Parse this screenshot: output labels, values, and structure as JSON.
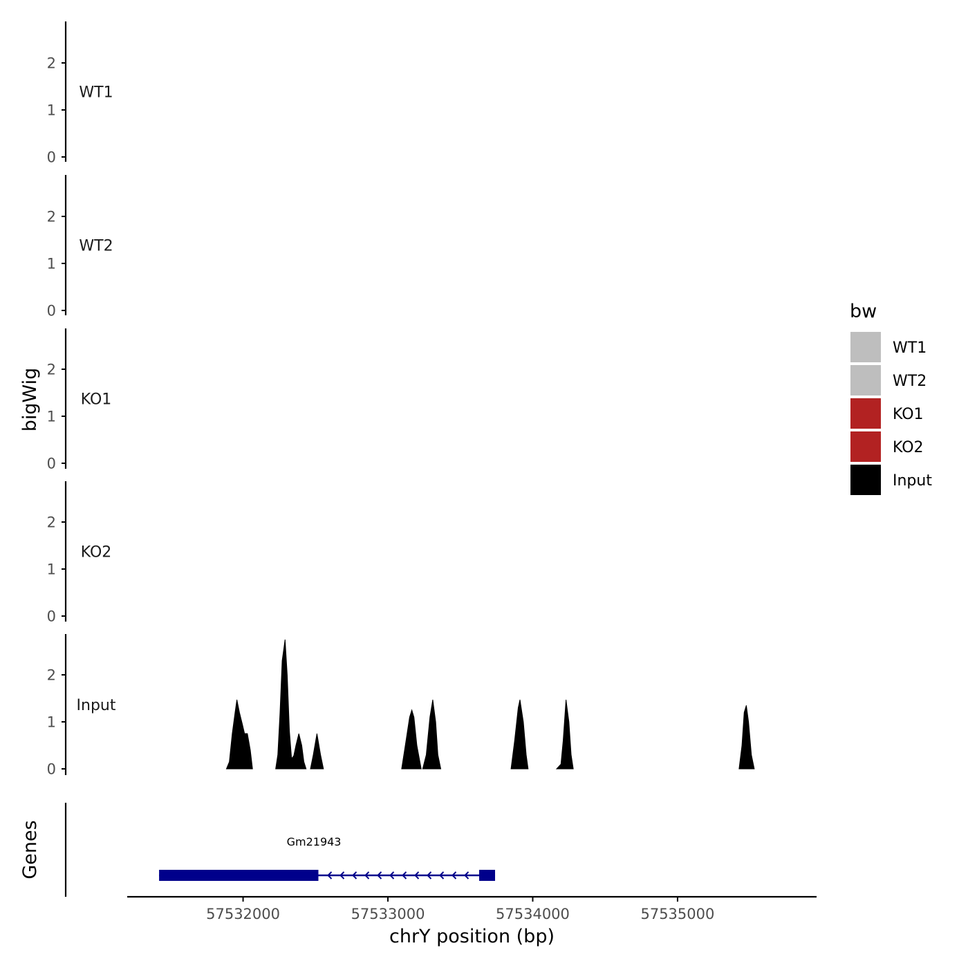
{
  "colors": {
    "WT": "#bebebe",
    "KO": "#b22222",
    "Input": "#000000",
    "gene": "#00008b",
    "axis": "#000000"
  },
  "chart_data": {
    "type": "area",
    "chromosome": "chrY",
    "xlabel": "chrY position (bp)",
    "ylabel": "bigWig",
    "genes_label": "Genes",
    "xlim": [
      57531200,
      57535960
    ],
    "x_ticks": [
      {
        "value": 57532000,
        "label": "57532000"
      },
      {
        "value": 57533000,
        "label": "57533000"
      },
      {
        "value": 57534000,
        "label": "57534000"
      },
      {
        "value": 57535000,
        "label": "57535000"
      }
    ],
    "ylim": [
      0,
      2.9
    ],
    "y_ticks": [
      {
        "value": 0,
        "label": "0"
      },
      {
        "value": 1,
        "label": "1"
      },
      {
        "value": 2,
        "label": "2"
      }
    ],
    "legend": {
      "title": "bw",
      "position": "right",
      "items": [
        {
          "label": "WT1",
          "color": "#bebebe"
        },
        {
          "label": "WT2",
          "color": "#bebebe"
        },
        {
          "label": "KO1",
          "color": "#b22222"
        },
        {
          "label": "KO2",
          "color": "#b22222"
        },
        {
          "label": "Input",
          "color": "#000000"
        }
      ]
    },
    "series": [
      {
        "name": "WT1",
        "label": "WT1",
        "color": "#bebebe",
        "points": []
      },
      {
        "name": "WT2",
        "label": "WT2",
        "color": "#bebebe",
        "points": []
      },
      {
        "name": "KO1",
        "label": "KO1",
        "color": "#b22222",
        "points": []
      },
      {
        "name": "KO2",
        "label": "KO2",
        "color": "#b22222",
        "points": []
      },
      {
        "name": "Input",
        "label": "Input",
        "color": "#000000",
        "peaks": [
          [
            [
              57531885,
              0
            ],
            [
              57531905,
              0.15
            ],
            [
              57531925,
              0.75
            ],
            [
              57531945,
              1.2
            ],
            [
              57531957,
              1.47
            ],
            [
              57531975,
              1.2
            ],
            [
              57531995,
              0.95
            ],
            [
              57532010,
              0.75
            ],
            [
              57532030,
              0.75
            ],
            [
              57532050,
              0.4
            ],
            [
              57532065,
              0
            ]
          ],
          [
            [
              57532225,
              0
            ],
            [
              57532240,
              0.3
            ],
            [
              57532255,
              1.2
            ],
            [
              57532270,
              2.3
            ],
            [
              57532290,
              2.75
            ],
            [
              57532305,
              2.0
            ],
            [
              57532320,
              0.8
            ],
            [
              57532335,
              0.22
            ],
            [
              57532350,
              0.28
            ],
            [
              57532365,
              0.5
            ],
            [
              57532385,
              0.75
            ],
            [
              57532405,
              0.5
            ],
            [
              57532420,
              0.15
            ],
            [
              57532435,
              0
            ]
          ],
          [
            [
              57532465,
              0
            ],
            [
              57532485,
              0.3
            ],
            [
              57532510,
              0.75
            ],
            [
              57532535,
              0.3
            ],
            [
              57532555,
              0
            ]
          ],
          [
            [
              57533095,
              0
            ],
            [
              57533120,
              0.5
            ],
            [
              57533150,
              1.1
            ],
            [
              57533165,
              1.25
            ],
            [
              57533180,
              1.1
            ],
            [
              57533200,
              0.5
            ],
            [
              57533230,
              0
            ]
          ],
          [
            [
              57533240,
              0
            ],
            [
              57533265,
              0.3
            ],
            [
              57533290,
              1.1
            ],
            [
              57533310,
              1.47
            ],
            [
              57533330,
              1.0
            ],
            [
              57533345,
              0.3
            ],
            [
              57533365,
              0
            ]
          ],
          [
            [
              57533850,
              0
            ],
            [
              57533875,
              0.6
            ],
            [
              57533900,
              1.3
            ],
            [
              57533912,
              1.47
            ],
            [
              57533935,
              1.0
            ],
            [
              57533955,
              0.3
            ],
            [
              57533968,
              0
            ]
          ],
          [
            [
              57534165,
              0
            ],
            [
              57534195,
              0.1
            ],
            [
              57534210,
              0.6
            ],
            [
              57534230,
              1.47
            ],
            [
              57534250,
              1.0
            ],
            [
              57534265,
              0.3
            ],
            [
              57534280,
              0
            ]
          ],
          [
            [
              57535425,
              0
            ],
            [
              57535445,
              0.5
            ],
            [
              57535460,
              1.2
            ],
            [
              57535475,
              1.35
            ],
            [
              57535490,
              1.0
            ],
            [
              57535510,
              0.3
            ],
            [
              57535530,
              0
            ]
          ]
        ]
      }
    ],
    "genes": [
      {
        "name": "Gm21943",
        "start": 57531420,
        "end": 57533740,
        "strand": "-",
        "exons": [
          [
            57531420,
            57532520
          ],
          [
            57533630,
            57533740
          ]
        ]
      }
    ]
  }
}
